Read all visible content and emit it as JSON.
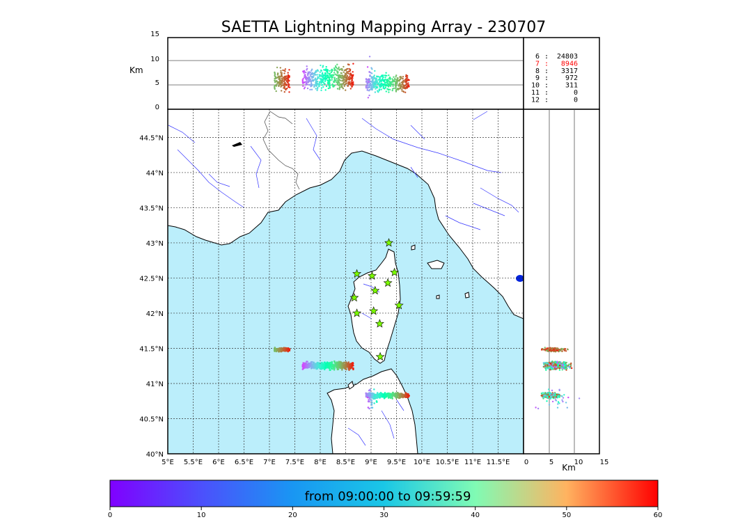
{
  "title": "SAETTA Lightning Mapping Array - 230707",
  "top_panel": {
    "ylabel": "Km",
    "ytick_labels": [
      "0",
      "5",
      "10",
      "15"
    ],
    "ytick_values": [
      0,
      5,
      10,
      15
    ]
  },
  "right_panel": {
    "xlabel": "Km",
    "xtick_labels": [
      "0",
      "5",
      "10",
      "15"
    ],
    "xtick_values": [
      0,
      5,
      10,
      15
    ]
  },
  "station_counts": [
    {
      "stations": "6",
      "sep": ":",
      "count": "24803",
      "color": "#000000"
    },
    {
      "stations": "7",
      "sep": ":",
      "count": "8946",
      "color": "#ff0000"
    },
    {
      "stations": "8",
      "sep": ":",
      "count": "3317",
      "color": "#000000"
    },
    {
      "stations": "9",
      "sep": ":",
      "count": "972",
      "color": "#000000"
    },
    {
      "stations": "10",
      "sep": ":",
      "count": "311",
      "color": "#000000"
    },
    {
      "stations": "11",
      "sep": ":",
      "count": "0",
      "color": "#000000"
    },
    {
      "stations": "12",
      "sep": ":",
      "count": "0",
      "color": "#000000"
    }
  ],
  "map": {
    "lon_range": [
      5.0,
      12.0
    ],
    "lat_range": [
      40.0,
      44.9
    ],
    "lon_tick_labels": [
      "5°E",
      "5.5°E",
      "6°E",
      "6.5°E",
      "7°E",
      "7.5°E",
      "8°E",
      "8.5°E",
      "9°E",
      "9.5°E",
      "10°E",
      "10.5°E",
      "11°E",
      "11.5°E"
    ],
    "lon_tick_values": [
      5.0,
      5.5,
      6.0,
      6.5,
      7.0,
      7.5,
      8.0,
      8.5,
      9.0,
      9.5,
      10.0,
      10.5,
      11.0,
      11.5
    ],
    "lat_tick_labels": [
      "40°N",
      "40.5°N",
      "41°N",
      "41.5°N",
      "42°N",
      "42.5°N",
      "43°N",
      "43.5°N",
      "44°N",
      "44.5°N"
    ],
    "lat_tick_values": [
      40.0,
      40.5,
      41.0,
      41.5,
      42.0,
      42.5,
      43.0,
      43.5,
      44.0,
      44.5
    ],
    "sea_color": "#bbeefb",
    "land_color": "#ffffff",
    "river_color": "#3333ff",
    "station_color": "#7cfc00",
    "stations": [
      {
        "lon": 9.35,
        "lat": 43.0
      },
      {
        "lon": 8.72,
        "lat": 42.56
      },
      {
        "lon": 9.02,
        "lat": 42.53
      },
      {
        "lon": 9.46,
        "lat": 42.58
      },
      {
        "lon": 9.08,
        "lat": 42.32
      },
      {
        "lon": 9.33,
        "lat": 42.43
      },
      {
        "lon": 8.67,
        "lat": 42.22
      },
      {
        "lon": 9.55,
        "lat": 42.11
      },
      {
        "lon": 8.72,
        "lat": 42.0
      },
      {
        "lon": 9.05,
        "lat": 42.03
      },
      {
        "lon": 9.17,
        "lat": 41.85
      },
      {
        "lon": 9.18,
        "lat": 41.38
      }
    ]
  },
  "lightning": {
    "clusters": [
      {
        "lon": [
          7.1,
          7.4
        ],
        "lat": [
          41.44,
          41.52
        ],
        "t": [
          44,
          58
        ],
        "alt": [
          3,
          9
        ],
        "n": 160
      },
      {
        "lon": [
          7.65,
          8.65
        ],
        "lat": [
          41.18,
          41.33
        ],
        "t": [
          5,
          58
        ],
        "alt": [
          3,
          10
        ],
        "n": 500
      },
      {
        "lon": [
          8.9,
          9.75
        ],
        "lat": [
          40.78,
          40.88
        ],
        "t": [
          10,
          58
        ],
        "alt": [
          3,
          8
        ],
        "n": 360
      },
      {
        "lon": [
          8.92,
          9.12
        ],
        "lat": [
          40.5,
          41.0
        ],
        "t": [
          4,
          30
        ],
        "alt": [
          2,
          12
        ],
        "n": 30
      }
    ]
  },
  "colorbar": {
    "label": "from 09:00:00 to 09:59:59",
    "tick_labels": [
      "0",
      "10",
      "20",
      "30",
      "40",
      "50",
      "60"
    ],
    "tick_values": [
      0,
      10,
      20,
      30,
      40,
      50,
      60
    ],
    "colormap": "rainbow",
    "range": [
      0,
      60
    ]
  }
}
